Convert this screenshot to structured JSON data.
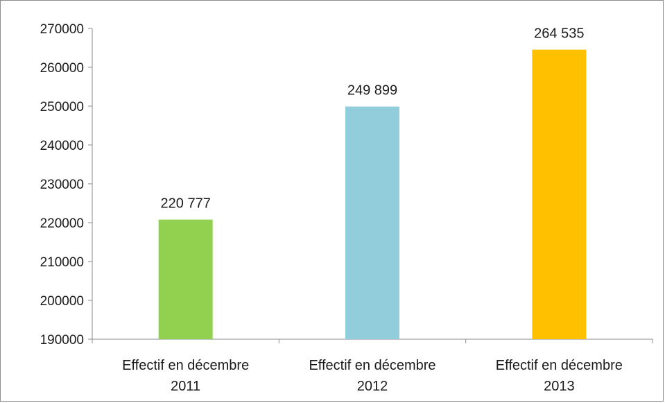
{
  "chart_data": {
    "type": "bar",
    "categories": [
      [
        "Effectif en décembre",
        "2011"
      ],
      [
        "Effectif en décembre",
        "2012"
      ],
      [
        "Effectif en décembre",
        "2013"
      ]
    ],
    "values": [
      220777,
      249899,
      264535
    ],
    "data_labels": [
      "220 777",
      "249 899",
      "264 535"
    ],
    "colors": [
      "#92d050",
      "#92cddc",
      "#ffc000"
    ],
    "ylim": [
      190000,
      270000
    ],
    "yticks": [
      190000,
      200000,
      210000,
      220000,
      230000,
      240000,
      250000,
      260000,
      270000
    ],
    "ytick_labels": [
      "190000",
      "200000",
      "210000",
      "220000",
      "230000",
      "240000",
      "250000",
      "260000",
      "270000"
    ],
    "grid": false,
    "legend": "none",
    "title": "",
    "xlabel": "",
    "ylabel": ""
  }
}
